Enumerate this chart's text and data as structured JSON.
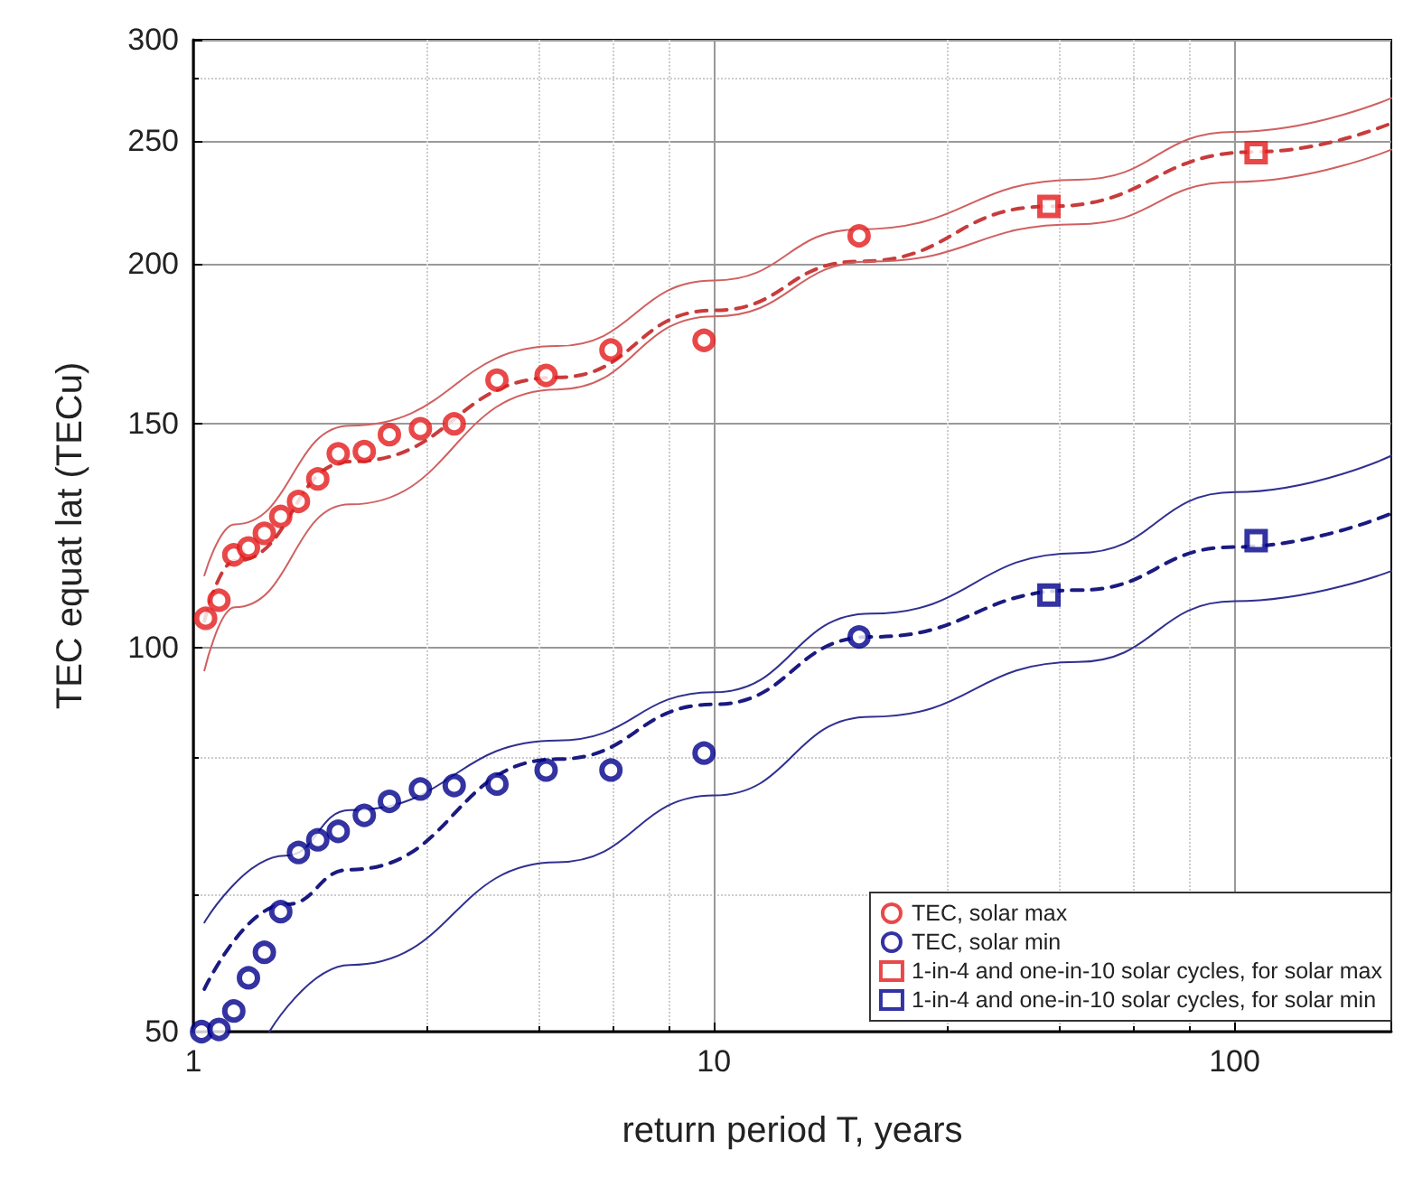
{
  "chart_data": {
    "type": "scatter",
    "xlabel": "return period T, years",
    "ylabel": "TEC equat lat (TECu)",
    "log": "xy",
    "xlim": [
      1,
      200
    ],
    "xticks": [
      1,
      10,
      100
    ],
    "ylim": [
      50,
      300
    ],
    "yticks": [
      50,
      100,
      150,
      200,
      250,
      300
    ],
    "grid": true,
    "legend": "bottom right",
    "series": [
      {
        "name": "TEC, solar max",
        "marker": "circle",
        "color": "#e31a1c",
        "x": [
          1.056,
          1.12,
          1.196,
          1.276,
          1.369,
          1.472,
          1.592,
          1.734,
          1.898,
          2.13,
          2.38,
          2.73,
          3.17,
          3.83,
          4.76,
          6.34,
          9.57,
          19.0
        ],
        "values": [
          105.5,
          109,
          118.3,
          119.8,
          123,
          126.8,
          130.3,
          135.7,
          142,
          142.6,
          147,
          148.6,
          149.9,
          162.2,
          163.6,
          171.3,
          174.3,
          210.5
        ]
      },
      {
        "name": "TEC, solar min",
        "marker": "circle",
        "color": "#00008b",
        "x": [
          1.037,
          1.12,
          1.196,
          1.276,
          1.369,
          1.472,
          1.592,
          1.734,
          1.898,
          2.13,
          2.38,
          2.73,
          3.17,
          3.83,
          4.76,
          6.34,
          9.57,
          19.0
        ],
        "values": [
          50,
          50.2,
          51.9,
          55.1,
          57.7,
          62.1,
          69.1,
          70.7,
          71.8,
          73.9,
          75.8,
          77.5,
          78,
          78.2,
          80.2,
          80.2,
          82.7,
          102
        ]
      },
      {
        "name": "1-in-4 and one-in-10 solar cycles, for solar max",
        "marker": "square",
        "color": "#e31a1c",
        "x": [
          44,
          110
        ],
        "values": [
          222,
          244.6
        ]
      },
      {
        "name": "1-in-4 and one-in-10 solar cycles, for solar min",
        "marker": "square",
        "color": "#00008b",
        "x": [
          44,
          110
        ],
        "values": [
          110,
          121.4
        ]
      },
      {
        "type": "line",
        "line_style": "dashed",
        "color": "#c83c3c",
        "x": [
          1.05,
          1.2,
          2,
          5,
          10,
          19,
          44,
          110,
          200
        ],
        "values": [
          105,
          117,
          140,
          163,
          184,
          201,
          222,
          245,
          258
        ]
      },
      {
        "type": "line",
        "line_style": "solid",
        "color": "#d06060",
        "x": [
          1.05,
          1.2,
          2,
          5,
          10,
          19,
          50,
          100,
          200
        ],
        "values": [
          114,
          125,
          149.4,
          172.5,
          194.2,
          213,
          233,
          254,
          270
        ]
      },
      {
        "type": "line",
        "line_style": "solid",
        "color": "#d06060",
        "x": [
          1.05,
          1.2,
          2,
          5,
          10,
          20,
          50,
          100,
          200
        ],
        "values": [
          96,
          107.6,
          129.6,
          159.5,
          182,
          201,
          215,
          232,
          246
        ]
      },
      {
        "type": "line",
        "line_style": "dashed",
        "color": "#1a1a80",
        "x": [
          1.05,
          1.5,
          2,
          5,
          10,
          20,
          50,
          100,
          200
        ],
        "values": [
          54,
          62.9,
          67,
          81.8,
          90.3,
          102,
          111,
          120,
          127.5
        ]
      },
      {
        "type": "line",
        "line_style": "solid",
        "color": "#303090",
        "x": [
          1.05,
          1.5,
          2,
          5,
          10,
          20,
          50,
          100,
          200
        ],
        "values": [
          60.9,
          68.7,
          74.6,
          84.6,
          92.3,
          106.4,
          118.7,
          132.5,
          141.5
        ]
      },
      {
        "type": "line",
        "line_style": "solid",
        "color": "#303090",
        "x": [
          1.4,
          2,
          5,
          10,
          20,
          50,
          100,
          200
        ],
        "values": [
          50,
          56.4,
          67.9,
          76.6,
          88.3,
          97.5,
          108.8,
          114.9
        ]
      }
    ]
  }
}
